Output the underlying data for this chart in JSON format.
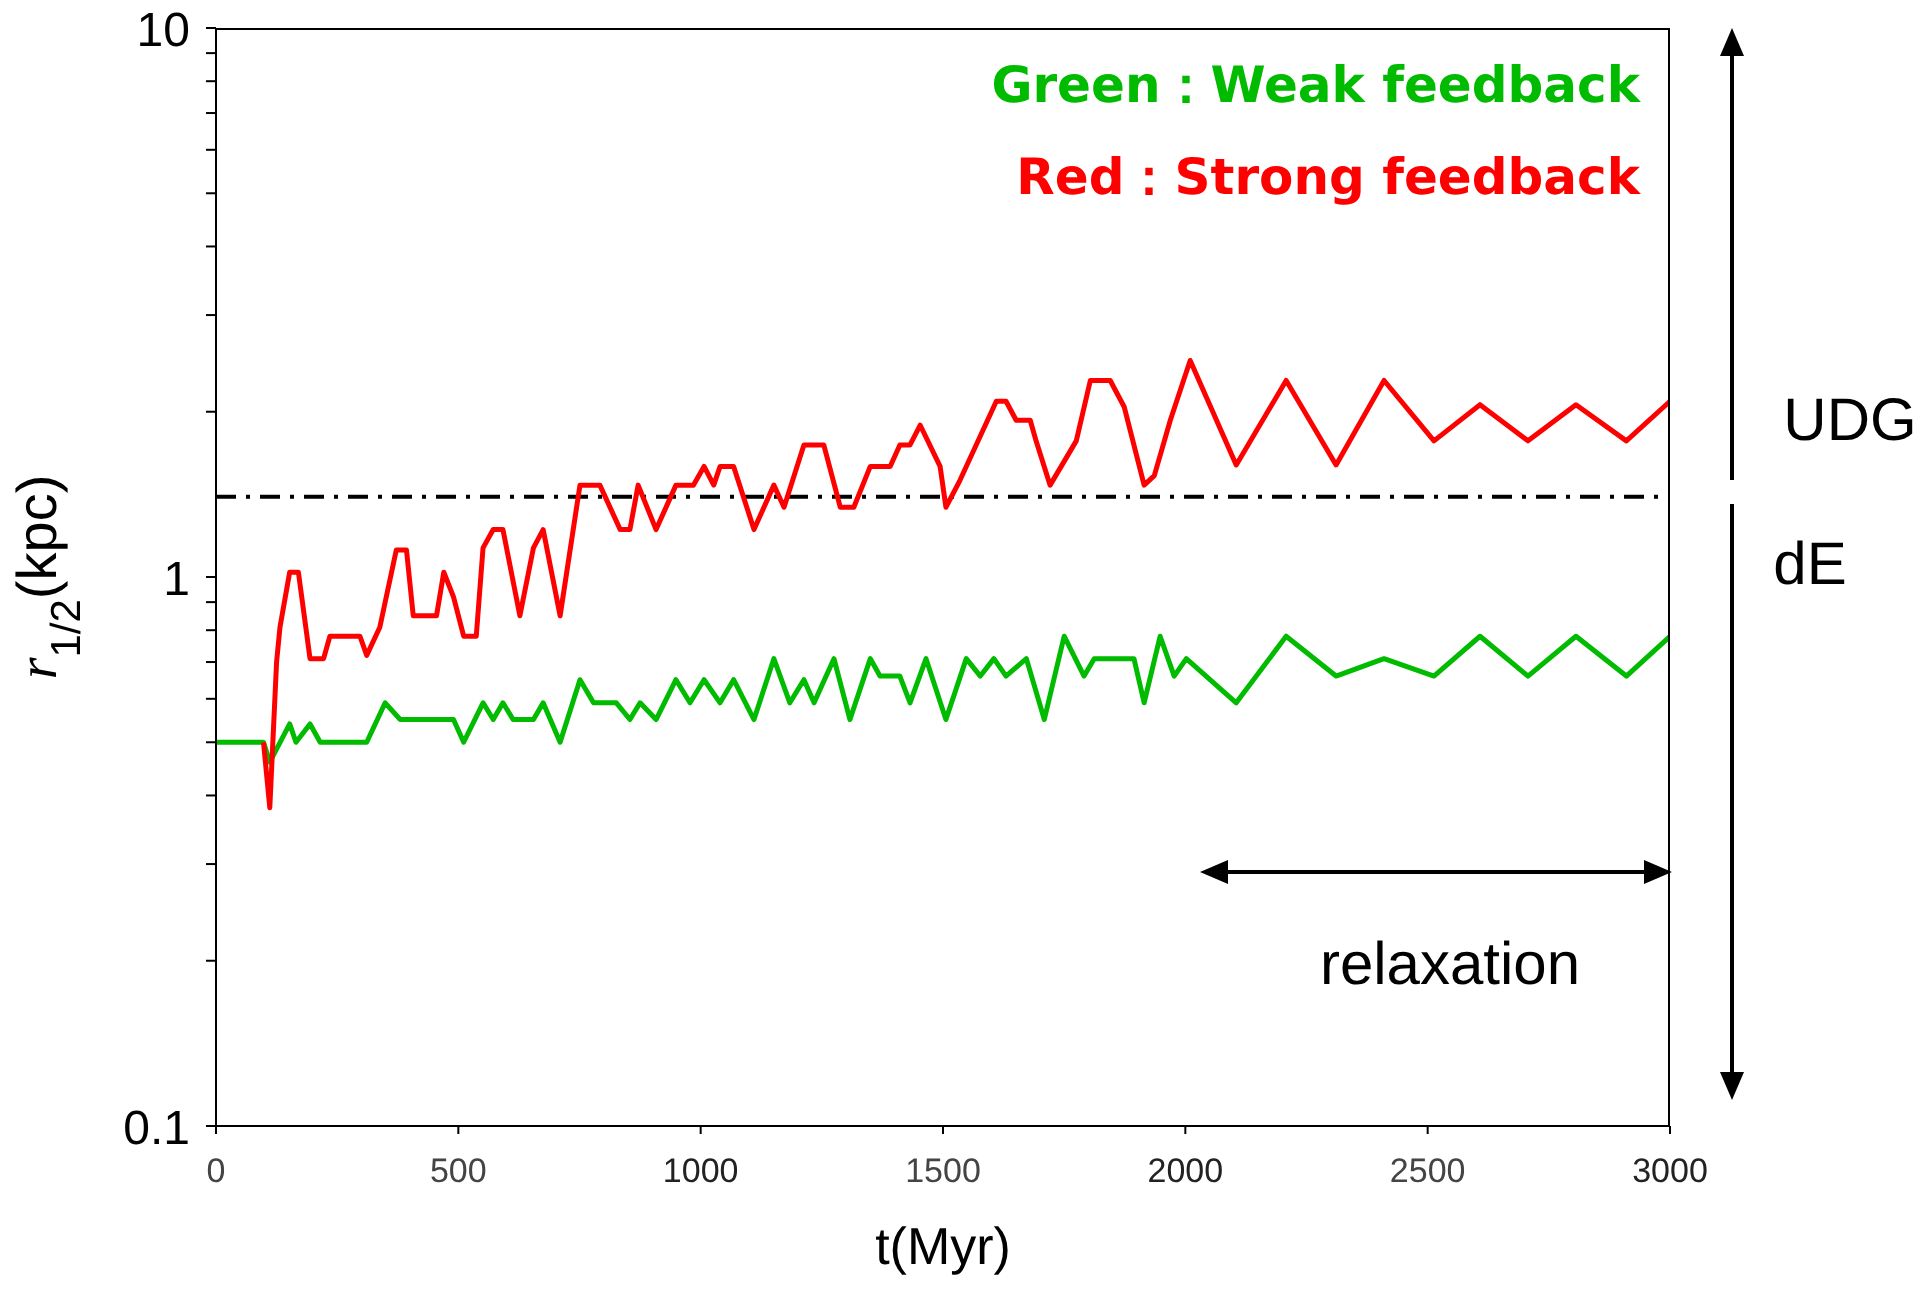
{
  "chart_data": {
    "type": "line",
    "xlabel": "t(Myr)",
    "ylabel": "r$_{1/2}$(kpc)",
    "log": "y",
    "xlim": [
      0,
      3000
    ],
    "ylim": [
      0.1,
      10
    ],
    "xticks": [
      0,
      500,
      1000,
      1500,
      2000,
      2500,
      3000
    ],
    "yticks": [
      0.1,
      {
        "value": 0.2,
        "label": null
      },
      {
        "value": 0.3,
        "label": null
      },
      {
        "value": 0.4,
        "label": null
      },
      {
        "value": 0.5,
        "label": null
      },
      {
        "value": 0.6,
        "label": null
      },
      {
        "value": 0.7,
        "label": null
      },
      {
        "value": 0.8,
        "label": null
      },
      {
        "value": 0.9,
        "label": null
      },
      1,
      {
        "value": 2,
        "label": null
      },
      {
        "value": 3,
        "label": null
      },
      {
        "value": 4,
        "label": null
      },
      {
        "value": 5,
        "label": null
      },
      {
        "value": 6,
        "label": null
      },
      {
        "value": 7,
        "label": null
      },
      {
        "value": 8,
        "label": null
      },
      {
        "value": 9,
        "label": null
      },
      10
    ],
    "grid": false,
    "legend": "top right",
    "marker": "none",
    "line_style": "solid",
    "ref_lines": [
      {
        "axis": "y",
        "value": 1.4,
        "color": "#000000",
        "line_style": "dashdot"
      }
    ],
    "annotations": [
      "UDG",
      "dE",
      "relaxation"
    ],
    "series": [
      {
        "name": "Red：Strong feedback",
        "color": "#ff0000",
        "x": [
          98,
          111,
          125,
          132,
          152,
          170,
          194,
          222,
          235,
          297,
          311,
          338,
          372,
          393,
          407,
          455,
          470,
          490,
          511,
          537,
          551,
          572,
          592,
          627,
          655,
          675,
          710,
          751,
          792,
          834,
          854,
          871,
          908,
          949,
          985,
          1007,
          1027,
          1040,
          1068,
          1110,
          1151,
          1172,
          1213,
          1254,
          1288,
          1316,
          1350,
          1391,
          1411,
          1432,
          1453,
          1494,
          1506,
          1535,
          1610,
          1630,
          1651,
          1680,
          1692,
          1721,
          1775,
          1804,
          1845,
          1874,
          1915,
          1936,
          1969,
          2010,
          2105,
          2208,
          2311,
          2410,
          2513,
          2608,
          2707,
          2806,
          2910,
          3000
        ],
        "values": [
          0.5,
          0.38,
          0.7,
          0.81,
          1.02,
          1.02,
          0.71,
          0.71,
          0.78,
          0.78,
          0.72,
          0.81,
          1.12,
          1.12,
          0.85,
          0.85,
          1.02,
          0.92,
          0.78,
          0.78,
          1.13,
          1.22,
          1.22,
          0.85,
          1.13,
          1.22,
          0.85,
          1.47,
          1.47,
          1.22,
          1.22,
          1.47,
          1.22,
          1.47,
          1.47,
          1.59,
          1.47,
          1.59,
          1.59,
          1.22,
          1.47,
          1.34,
          1.74,
          1.74,
          1.34,
          1.34,
          1.59,
          1.59,
          1.74,
          1.74,
          1.89,
          1.59,
          1.34,
          1.5,
          2.09,
          2.09,
          1.93,
          1.93,
          1.77,
          1.47,
          1.77,
          2.28,
          2.28,
          2.04,
          1.47,
          1.53,
          1.93,
          2.48,
          1.6,
          2.28,
          1.6,
          2.28,
          1.77,
          2.06,
          1.77,
          2.06,
          1.77,
          2.09
        ]
      },
      {
        "name": "Green：Weak feedback",
        "color": "#00bb00",
        "x": [
          0,
          98,
          111,
          152,
          165,
          194,
          215,
          311,
          349,
          380,
          490,
          511,
          551,
          572,
          592,
          613,
          655,
          675,
          710,
          751,
          779,
          826,
          854,
          875,
          908,
          949,
          978,
          1007,
          1040,
          1068,
          1110,
          1151,
          1184,
          1213,
          1234,
          1275,
          1308,
          1350,
          1370,
          1411,
          1432,
          1465,
          1506,
          1548,
          1577,
          1605,
          1630,
          1672,
          1709,
          1750,
          1791,
          1812,
          1894,
          1915,
          1948,
          1977,
          2002,
          2105,
          2208,
          2311,
          2410,
          2513,
          2608,
          2707,
          2806,
          2910,
          3000
        ],
        "values": [
          0.5,
          0.5,
          0.46,
          0.54,
          0.5,
          0.54,
          0.5,
          0.5,
          0.59,
          0.55,
          0.55,
          0.5,
          0.59,
          0.55,
          0.59,
          0.55,
          0.55,
          0.59,
          0.5,
          0.65,
          0.59,
          0.59,
          0.55,
          0.59,
          0.55,
          0.65,
          0.59,
          0.65,
          0.59,
          0.65,
          0.55,
          0.71,
          0.59,
          0.65,
          0.59,
          0.71,
          0.55,
          0.71,
          0.66,
          0.66,
          0.59,
          0.71,
          0.55,
          0.71,
          0.66,
          0.71,
          0.66,
          0.71,
          0.55,
          0.78,
          0.66,
          0.71,
          0.71,
          0.59,
          0.78,
          0.66,
          0.71,
          0.59,
          0.78,
          0.66,
          0.71,
          0.66,
          0.78,
          0.66,
          0.78,
          0.66,
          0.78
        ]
      }
    ]
  }
}
